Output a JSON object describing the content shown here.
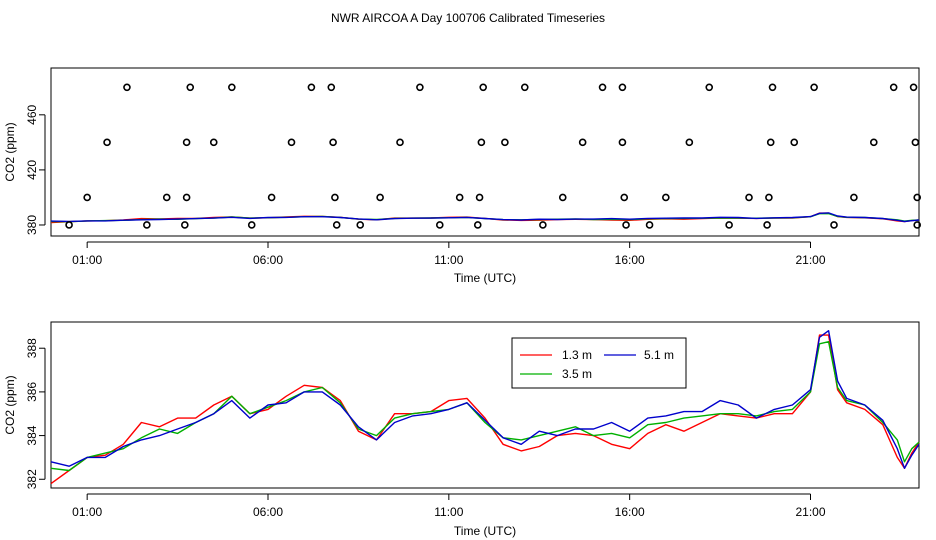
{
  "title": "NWR AIRCOA A  Day 100706  Calibrated Timeseries",
  "chart_data": [
    {
      "type": "scatter+line",
      "id": "top",
      "xlabel": "Time (UTC)",
      "ylabel": "CO2 (ppm)",
      "xlim": [
        0.0,
        24.0
      ],
      "ylim": [
        372,
        494
      ],
      "xticks": [
        1,
        6,
        11,
        16,
        21
      ],
      "xtick_labels": [
        "01:00",
        "06:00",
        "11:00",
        "16:00",
        "21:00"
      ],
      "yticks": [
        380,
        420,
        460
      ],
      "ytick_labels": [
        "380",
        "420",
        "460"
      ],
      "points": [
        {
          "x": 0.5,
          "y": 380
        },
        {
          "x": 1.0,
          "y": 400
        },
        {
          "x": 1.55,
          "y": 440
        },
        {
          "x": 2.1,
          "y": 480
        },
        {
          "x": 2.65,
          "y": 380
        },
        {
          "x": 3.2,
          "y": 400
        },
        {
          "x": 3.75,
          "y": 440
        },
        {
          "x": 3.85,
          "y": 480
        },
        {
          "x": 3.75,
          "y": 400
        },
        {
          "x": 3.7,
          "y": 380
        },
        {
          "x": 4.5,
          "y": 440
        },
        {
          "x": 5.0,
          "y": 480
        },
        {
          "x": 5.55,
          "y": 380
        },
        {
          "x": 6.1,
          "y": 400
        },
        {
          "x": 6.65,
          "y": 440
        },
        {
          "x": 7.2,
          "y": 480
        },
        {
          "x": 7.75,
          "y": 480
        },
        {
          "x": 7.8,
          "y": 440
        },
        {
          "x": 7.85,
          "y": 400
        },
        {
          "x": 7.9,
          "y": 380
        },
        {
          "x": 8.55,
          "y": 380
        },
        {
          "x": 9.1,
          "y": 400
        },
        {
          "x": 9.65,
          "y": 440
        },
        {
          "x": 10.2,
          "y": 480
        },
        {
          "x": 10.75,
          "y": 380
        },
        {
          "x": 11.3,
          "y": 400
        },
        {
          "x": 11.85,
          "y": 400
        },
        {
          "x": 11.9,
          "y": 440
        },
        {
          "x": 11.95,
          "y": 480
        },
        {
          "x": 11.8,
          "y": 380
        },
        {
          "x": 12.55,
          "y": 440
        },
        {
          "x": 13.1,
          "y": 480
        },
        {
          "x": 13.6,
          "y": 380
        },
        {
          "x": 14.15,
          "y": 400
        },
        {
          "x": 14.7,
          "y": 440
        },
        {
          "x": 15.25,
          "y": 480
        },
        {
          "x": 15.8,
          "y": 480
        },
        {
          "x": 15.8,
          "y": 440
        },
        {
          "x": 15.85,
          "y": 400
        },
        {
          "x": 15.9,
          "y": 380
        },
        {
          "x": 16.55,
          "y": 380
        },
        {
          "x": 17.0,
          "y": 400
        },
        {
          "x": 17.65,
          "y": 440
        },
        {
          "x": 18.2,
          "y": 480
        },
        {
          "x": 18.75,
          "y": 380
        },
        {
          "x": 19.3,
          "y": 400
        },
        {
          "x": 19.85,
          "y": 400
        },
        {
          "x": 19.9,
          "y": 440
        },
        {
          "x": 19.95,
          "y": 480
        },
        {
          "x": 19.8,
          "y": 380
        },
        {
          "x": 20.55,
          "y": 440
        },
        {
          "x": 21.1,
          "y": 480
        },
        {
          "x": 21.65,
          "y": 380
        },
        {
          "x": 22.2,
          "y": 400
        },
        {
          "x": 22.75,
          "y": 440
        },
        {
          "x": 23.3,
          "y": 480
        },
        {
          "x": 23.85,
          "y": 480
        },
        {
          "x": 23.9,
          "y": 440
        },
        {
          "x": 23.95,
          "y": 400
        },
        {
          "x": 23.95,
          "y": 380
        }
      ]
    },
    {
      "type": "line",
      "id": "bottom",
      "xlabel": "Time (UTC)",
      "ylabel": "CO2 (ppm)",
      "xlim": [
        0.0,
        24.0
      ],
      "ylim": [
        381.6,
        389.2
      ],
      "xticks": [
        1,
        6,
        11,
        16,
        21
      ],
      "xtick_labels": [
        "01:00",
        "06:00",
        "11:00",
        "16:00",
        "21:00"
      ],
      "yticks": [
        382,
        384,
        386,
        388
      ],
      "ytick_labels": [
        "382",
        "384",
        "386",
        "388"
      ],
      "legend": {
        "position": "top-center",
        "entries": [
          "1.3 m",
          "3.5 m",
          "5.1 m"
        ]
      },
      "x": [
        0.0,
        0.5,
        1.0,
        1.5,
        2.0,
        2.5,
        3.0,
        3.5,
        4.0,
        4.5,
        5.0,
        5.5,
        6.0,
        6.5,
        7.0,
        7.5,
        8.0,
        8.5,
        9.0,
        9.5,
        10.0,
        10.5,
        11.0,
        11.5,
        12.0,
        12.5,
        13.0,
        13.5,
        14.0,
        14.5,
        15.0,
        15.5,
        16.0,
        16.5,
        17.0,
        17.5,
        18.0,
        18.5,
        19.0,
        19.5,
        20.0,
        20.5,
        21.0,
        21.25,
        21.5,
        21.75,
        22.0,
        22.5,
        23.0,
        23.4,
        23.6,
        23.8,
        24.0
      ],
      "series": [
        {
          "name": "1.3 m",
          "color": "#ff0000",
          "values": [
            381.8,
            382.4,
            383.0,
            383.1,
            383.6,
            384.6,
            384.4,
            384.8,
            384.8,
            385.4,
            385.8,
            385.0,
            385.2,
            385.8,
            386.3,
            386.2,
            385.6,
            384.2,
            383.8,
            385.0,
            385.0,
            385.1,
            385.6,
            385.7,
            384.8,
            383.6,
            383.3,
            383.5,
            384.0,
            384.1,
            384.0,
            383.6,
            383.4,
            384.1,
            384.5,
            384.2,
            384.6,
            385.0,
            384.9,
            384.8,
            385.0,
            385.0,
            386.0,
            388.6,
            388.6,
            386.1,
            385.5,
            385.2,
            384.5,
            383.0,
            382.5,
            383.2,
            383.7
          ]
        },
        {
          "name": "3.5 m",
          "color": "#00b000",
          "values": [
            382.5,
            382.4,
            383.0,
            383.2,
            383.4,
            383.9,
            384.3,
            384.1,
            384.6,
            385.0,
            385.8,
            385.0,
            385.3,
            385.6,
            386.0,
            386.2,
            385.5,
            384.3,
            384.0,
            384.8,
            385.0,
            385.1,
            385.2,
            385.5,
            384.6,
            383.9,
            383.8,
            384.0,
            384.2,
            384.4,
            384.0,
            384.1,
            383.9,
            384.5,
            384.6,
            384.8,
            384.9,
            385.0,
            385.0,
            384.9,
            385.1,
            385.2,
            386.0,
            388.2,
            388.3,
            386.2,
            385.6,
            385.4,
            384.6,
            383.8,
            382.8,
            383.4,
            383.7
          ]
        },
        {
          "name": "5.1 m",
          "color": "#0000cc",
          "values": [
            382.8,
            382.6,
            383.0,
            383.0,
            383.5,
            383.8,
            384.0,
            384.3,
            384.6,
            385.0,
            385.6,
            384.8,
            385.4,
            385.5,
            386.0,
            386.0,
            385.4,
            384.4,
            383.8,
            384.6,
            384.9,
            385.0,
            385.2,
            385.5,
            384.7,
            383.9,
            383.6,
            384.2,
            384.0,
            384.3,
            384.3,
            384.6,
            384.2,
            384.8,
            384.9,
            385.1,
            385.1,
            385.6,
            385.4,
            384.8,
            385.2,
            385.4,
            386.1,
            388.5,
            388.8,
            386.5,
            385.7,
            385.4,
            384.7,
            383.4,
            382.5,
            383.1,
            383.6
          ]
        }
      ]
    }
  ]
}
